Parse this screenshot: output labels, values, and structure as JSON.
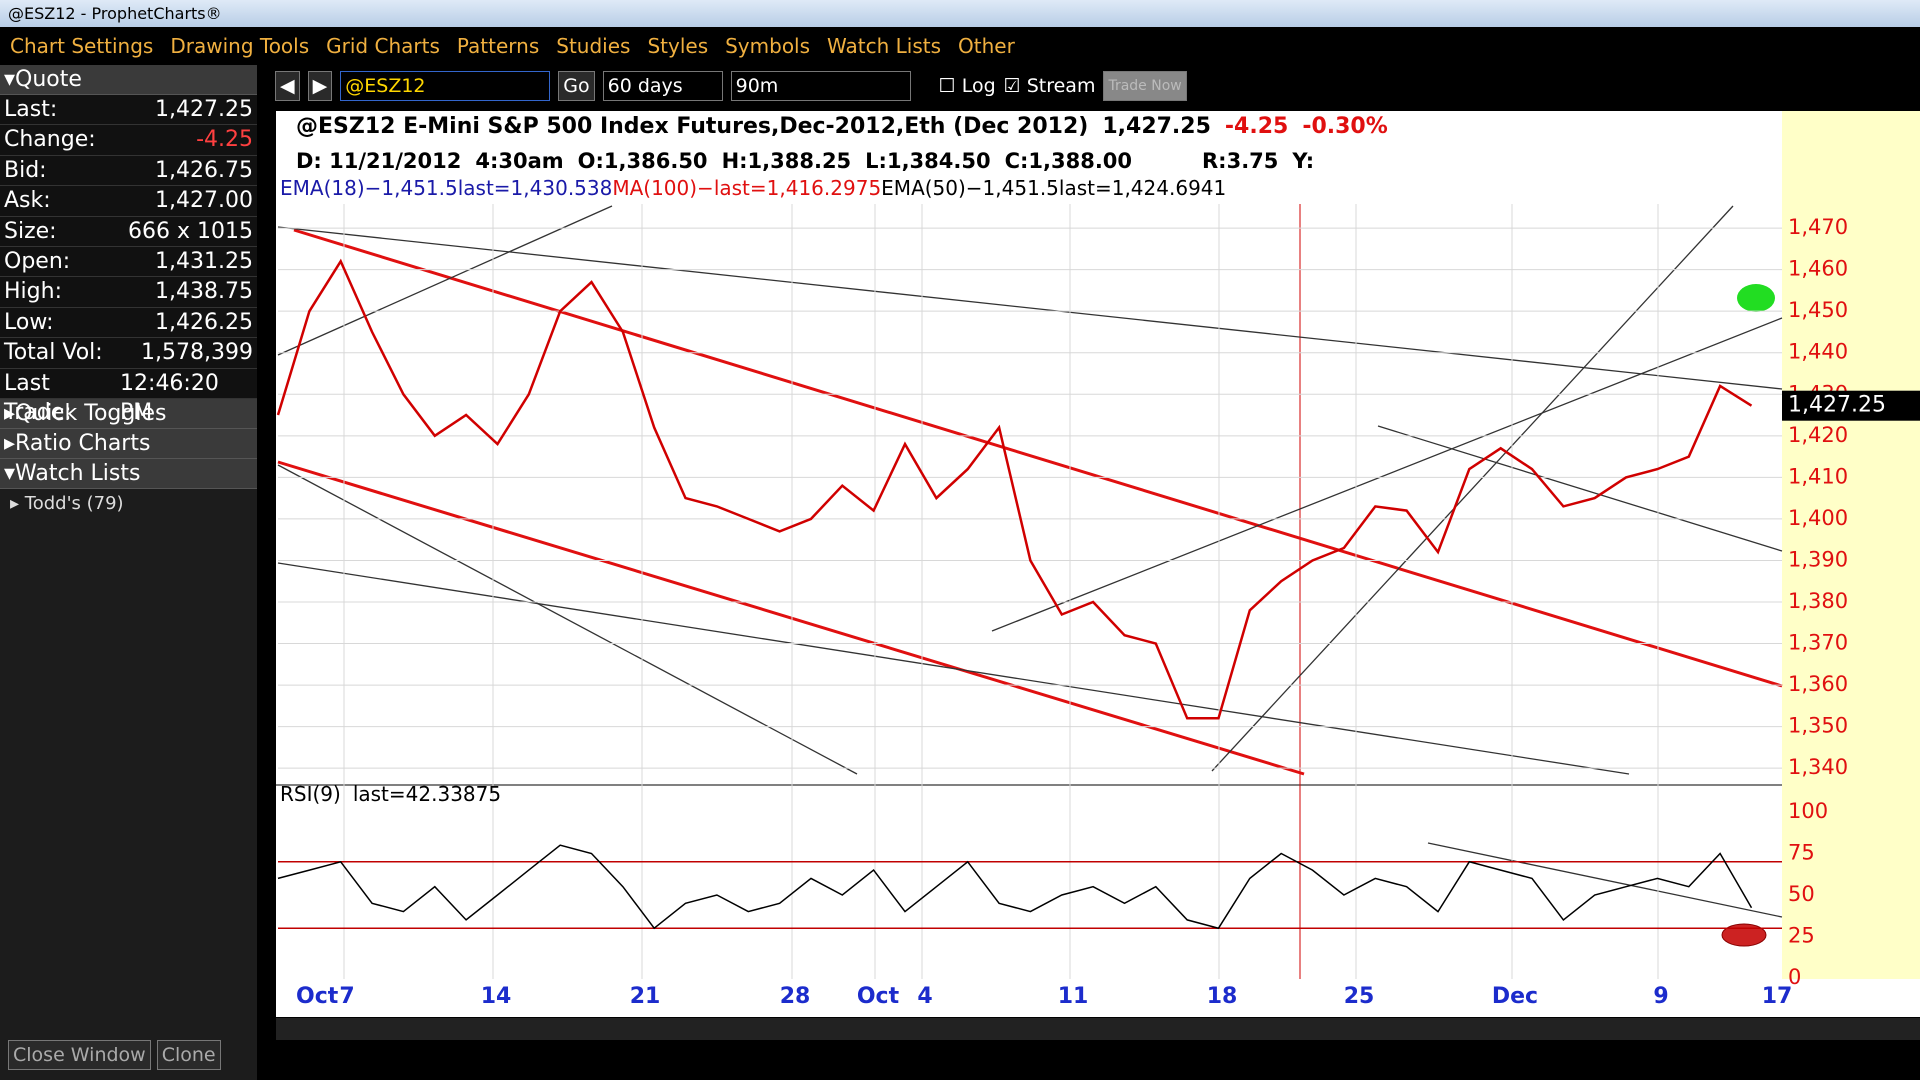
{
  "window": {
    "title": "@ESZ12 - ProphetCharts®",
    "close_button": "Close Window",
    "clone_button": "Clone"
  },
  "menu": [
    "Chart Settings",
    "Drawing Tools",
    "Grid Charts",
    "Patterns",
    "Studies",
    "Styles",
    "Symbols",
    "Watch Lists",
    "Other"
  ],
  "sidebar": {
    "quote_header": "Quote",
    "quote": [
      [
        "Last:",
        "1,427.25"
      ],
      [
        "Change:",
        "-4.25"
      ],
      [
        "Bid:",
        "1,426.75"
      ],
      [
        "Ask:",
        "1,427.00"
      ],
      [
        "Size:",
        "666 x 1015"
      ],
      [
        "Open:",
        "1,431.25"
      ],
      [
        "High:",
        "1,438.75"
      ],
      [
        "Low:",
        "1,426.25"
      ],
      [
        "Total Vol:",
        "1,578,399"
      ],
      [
        "Last Trade:",
        "12:46:20 PM"
      ]
    ],
    "sections": [
      "Quick Toggles",
      "Ratio Charts",
      "Watch Lists"
    ],
    "watch_item": "Todd's (79)"
  },
  "toolbar": {
    "symbol": "@ESZ12",
    "go": "Go",
    "range": "60 days",
    "interval": "90m",
    "log": "Log",
    "stream": "Stream",
    "trade": "Trade Now"
  },
  "chart_data": {
    "type": "line",
    "title": "@ESZ12 E-Mini S&P 500 Index Futures,Dec-2012,Eth (Dec 2012)",
    "last": "1,427.25",
    "change": "-4.25",
    "change_pct": "-0.30%",
    "info": [
      "D: 11/21/2012",
      "4:30am",
      "O:1,386.50",
      "H:1,388.25",
      "L:1,384.50",
      "C:1,388.00",
      "R:3.75",
      "Y:"
    ],
    "studies": [
      {
        "text": "EMA(18)−1,451.5last=1,430.538",
        "color": "#1a1aa8"
      },
      {
        "text": "MA(100)−last=1,416.2975",
        "color": "#e01010"
      },
      {
        "text": "EMA(50)−1,451.5last=1,424.6941",
        "color": "#000000"
      }
    ],
    "xtick_labels": [
      "Oct",
      "7",
      "14",
      "21",
      "28",
      "Oct",
      "4",
      "11",
      "18",
      "25",
      "Dec",
      "9",
      "17"
    ],
    "series": [
      {
        "name": "@ESZ12",
        "color": "#d00000",
        "values": [
          1425,
          1450,
          1462,
          1445,
          1430,
          1420,
          1425,
          1418,
          1430,
          1450,
          1457,
          1445,
          1422,
          1405,
          1403,
          1400,
          1397,
          1400,
          1408,
          1402,
          1418,
          1405,
          1412,
          1422,
          1390,
          1377,
          1380,
          1372,
          1370,
          1352,
          1352,
          1378,
          1385,
          1390,
          1393,
          1403,
          1402,
          1392,
          1412,
          1417,
          1412,
          1403,
          1405,
          1410,
          1412,
          1415,
          1432,
          1427.25
        ]
      }
    ],
    "ylim": [
      1338.6,
      1475.8
    ],
    "yticks": [
      {
        "value": 1470,
        "label": "1,470"
      },
      {
        "value": 1460,
        "label": "1,460"
      },
      {
        "value": 1450,
        "label": "1,450"
      },
      {
        "value": 1440,
        "label": "1,440"
      },
      {
        "value": 1430,
        "label": "1,430"
      },
      {
        "value": 1420,
        "label": "1,420"
      },
      {
        "value": 1410,
        "label": "1,410"
      },
      {
        "value": 1400,
        "label": "1,400"
      },
      {
        "value": 1390,
        "label": "1,390"
      },
      {
        "value": 1380,
        "label": "1,380"
      },
      {
        "value": 1370,
        "label": "1,370"
      },
      {
        "value": 1360,
        "label": "1,360"
      },
      {
        "value": 1350,
        "label": "1,350"
      },
      {
        "value": 1340,
        "label": "1,340"
      }
    ],
    "grid": true,
    "rsi": {
      "label": "RSI(9)",
      "last": "last=42.33875",
      "color": "#000000",
      "level_color": "#c00000",
      "values": [
        60,
        65,
        70,
        45,
        40,
        55,
        35,
        50,
        65,
        80,
        75,
        55,
        30,
        45,
        50,
        40,
        45,
        60,
        50,
        65,
        40,
        55,
        70,
        45,
        40,
        50,
        55,
        45,
        55,
        35,
        30,
        60,
        75,
        65,
        50,
        60,
        55,
        40,
        70,
        65,
        60,
        35,
        50,
        55,
        60,
        55,
        75,
        42.34
      ],
      "ylim": [
        0,
        100
      ],
      "yticks": [
        100,
        75,
        50,
        25,
        0
      ],
      "levels": [
        70,
        30
      ]
    }
  }
}
